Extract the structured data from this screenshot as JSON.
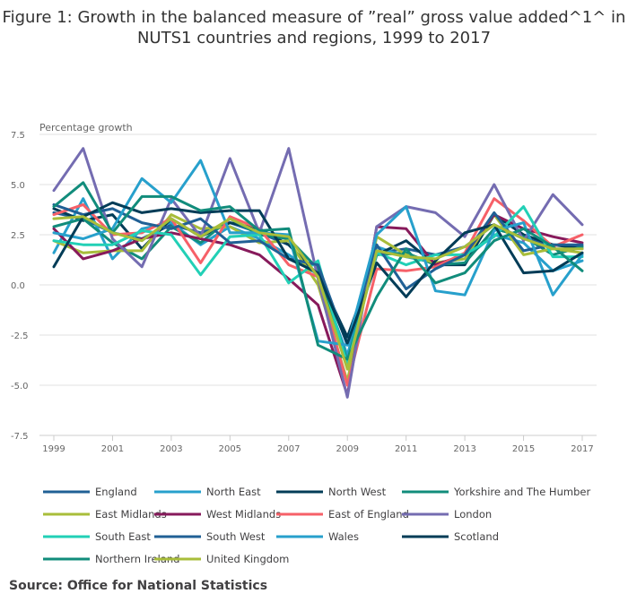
{
  "title_line1": "Figure 1: Growth in the balanced measure of ”real” gross value added^1^ in",
  "title_line2": "NUTS1 countries and regions, 1999 to 2017",
  "source": "Source: Office for National Statistics",
  "chart_data": {
    "type": "line",
    "title": "Figure 1: Growth in the balanced measure of ”real” gross value added^1^ in NUTS1 countries and regions, 1999 to 2017",
    "xlabel": "",
    "ylabel": "Percentage growth",
    "ylim": [
      -7.5,
      7.5
    ],
    "yticks": [
      7.5,
      5.0,
      2.5,
      0.0,
      -2.5,
      -5.0,
      -7.5
    ],
    "ytick_labels": [
      "7.5",
      "5.0",
      "2.5",
      "0.0",
      "-2.5",
      "-5.0",
      "-7.5"
    ],
    "x": [
      1999,
      2000,
      2001,
      2002,
      2003,
      2004,
      2005,
      2006,
      2007,
      2008,
      2009,
      2010,
      2011,
      2012,
      2013,
      2014,
      2015,
      2016,
      2017
    ],
    "xticks": [
      1999,
      2001,
      2003,
      2005,
      2007,
      2009,
      2011,
      2013,
      2015,
      2017
    ],
    "xtick_labels": [
      "1999",
      "2001",
      "2003",
      "2005",
      "2007",
      "2009",
      "2011",
      "2013",
      "2015",
      "2017"
    ],
    "grid": true,
    "legend_position": "bottom",
    "series": [
      {
        "name": "England",
        "color": "#206095",
        "values": [
          3.6,
          3.3,
          2.6,
          2.3,
          3.0,
          2.6,
          3.1,
          2.6,
          2.0,
          0.5,
          -3.9,
          1.6,
          1.8,
          1.5,
          1.9,
          3.0,
          2.3,
          2.0,
          1.9
        ]
      },
      {
        "name": "North East",
        "color": "#27A0CC",
        "values": [
          1.6,
          4.3,
          1.3,
          2.8,
          3.1,
          2.0,
          2.9,
          2.3,
          1.5,
          0.5,
          -3.5,
          1.9,
          1.4,
          1.1,
          1.3,
          2.5,
          2.1,
          0.7,
          1.2
        ]
      },
      {
        "name": "North West",
        "color": "#003C57",
        "values": [
          3.8,
          3.2,
          3.5,
          1.8,
          3.3,
          2.4,
          3.1,
          2.8,
          2.0,
          0.5,
          -2.6,
          1.5,
          2.2,
          1.0,
          1.0,
          3.5,
          2.5,
          2.0,
          1.8
        ]
      },
      {
        "name": "Yorkshire and The Humber",
        "color": "#118C7B",
        "values": [
          2.9,
          3.3,
          2.1,
          1.3,
          2.9,
          2.1,
          3.3,
          2.5,
          2.3,
          0.8,
          -3.8,
          1.5,
          1.6,
          1.0,
          1.1,
          2.8,
          2.4,
          1.5,
          1.9
        ]
      },
      {
        "name": "East Midlands",
        "color": "#A8BD3A",
        "values": [
          2.2,
          1.6,
          1.7,
          1.7,
          3.5,
          2.8,
          2.9,
          2.1,
          2.2,
          0.0,
          -4.8,
          2.4,
          1.5,
          1.1,
          1.3,
          3.5,
          1.5,
          1.8,
          1.6
        ]
      },
      {
        "name": "West Midlands",
        "color": "#871A5B",
        "values": [
          2.8,
          1.3,
          1.7,
          2.3,
          2.6,
          2.3,
          2.0,
          1.5,
          0.3,
          -1.0,
          -5.5,
          2.9,
          2.8,
          1.0,
          1.5,
          3.5,
          2.8,
          2.4,
          2.1
        ]
      },
      {
        "name": "East of England",
        "color": "#F66068",
        "values": [
          3.5,
          4.0,
          2.5,
          2.6,
          3.3,
          1.1,
          3.4,
          2.8,
          1.0,
          0.4,
          -5.0,
          0.8,
          0.7,
          0.9,
          1.6,
          4.3,
          3.2,
          1.9,
          2.5
        ]
      },
      {
        "name": "London",
        "color": "#746CB1",
        "values": [
          4.7,
          6.8,
          2.3,
          0.9,
          4.3,
          2.4,
          6.3,
          2.6,
          6.8,
          0.3,
          -5.6,
          2.9,
          3.9,
          3.6,
          2.4,
          5.0,
          2.2,
          4.5,
          3.0
        ]
      },
      {
        "name": "South East",
        "color": "#22D0B6",
        "values": [
          2.2,
          2.0,
          2.0,
          2.7,
          2.5,
          0.5,
          2.4,
          2.5,
          0.1,
          1.2,
          -4.0,
          1.6,
          1.0,
          1.5,
          1.5,
          2.4,
          3.9,
          1.4,
          1.4
        ]
      },
      {
        "name": "South West",
        "color": "#206095",
        "values": [
          4.0,
          3.5,
          3.8,
          3.1,
          2.8,
          3.3,
          2.1,
          2.2,
          1.3,
          1.0,
          -3.0,
          2.0,
          -0.2,
          0.8,
          1.5,
          3.6,
          1.7,
          2.0,
          2.0
        ]
      },
      {
        "name": "Wales",
        "color": "#27A0CC",
        "values": [
          2.6,
          2.3,
          2.8,
          5.3,
          4.1,
          6.2,
          2.6,
          2.6,
          2.5,
          -2.8,
          -3.0,
          2.5,
          3.9,
          -0.3,
          -0.5,
          2.7,
          3.1,
          -0.5,
          1.5
        ]
      },
      {
        "name": "Scotland",
        "color": "#003C57",
        "values": [
          0.9,
          3.4,
          4.1,
          3.6,
          3.8,
          3.6,
          3.7,
          3.7,
          1.3,
          0.6,
          -2.9,
          1.1,
          -0.6,
          1.2,
          2.6,
          3.0,
          0.6,
          0.7,
          1.6
        ]
      },
      {
        "name": "Northern Ireland",
        "color": "#118C7B",
        "values": [
          3.9,
          5.1,
          2.6,
          4.4,
          4.4,
          3.7,
          3.9,
          2.7,
          2.8,
          -3.0,
          -3.7,
          -0.6,
          1.8,
          0.1,
          0.6,
          2.2,
          2.8,
          1.9,
          0.7
        ]
      },
      {
        "name": "United Kingdom",
        "color": "#A8BD3A",
        "values": [
          3.3,
          3.4,
          2.6,
          2.2,
          3.3,
          2.4,
          3.3,
          2.6,
          2.4,
          0.4,
          -4.2,
          1.7,
          1.4,
          1.3,
          1.9,
          3.0,
          2.3,
          1.8,
          1.8
        ]
      }
    ]
  }
}
